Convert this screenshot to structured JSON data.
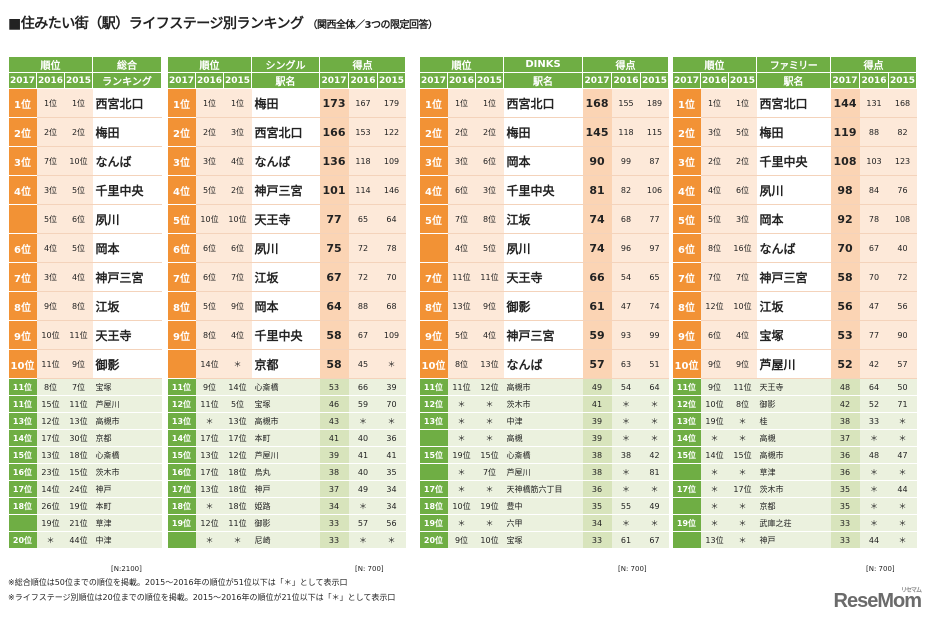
{
  "title": "■住みたい街（駅）ライフステージ別ランキング",
  "subtitle": "（関西全体／3つの限定回答）",
  "tables": [
    {
      "id": "overall",
      "header_group": "順位",
      "header_name_top": "総合",
      "header_name_bottom": "ランキング",
      "years": [
        "2017",
        "2016",
        "2015"
      ],
      "has_points": false,
      "top": [
        {
          "r": "1位",
          "a": "1位",
          "b": "1位",
          "n": "西宮北口"
        },
        {
          "r": "2位",
          "a": "2位",
          "b": "2位",
          "n": "梅田"
        },
        {
          "r": "3位",
          "a": "7位",
          "b": "10位",
          "n": "なんば"
        },
        {
          "r": "4位",
          "a": "3位",
          "b": "5位",
          "n": "千里中央"
        },
        {
          "r": "",
          "a": "5位",
          "b": "6位",
          "n": "夙川"
        },
        {
          "r": "6位",
          "a": "4位",
          "b": "5位",
          "n": "岡本"
        },
        {
          "r": "7位",
          "a": "3位",
          "b": "4位",
          "n": "神戸三宮"
        },
        {
          "r": "8位",
          "a": "9位",
          "b": "8位",
          "n": "江坂"
        },
        {
          "r": "9位",
          "a": "10位",
          "b": "11位",
          "n": "天王寺"
        },
        {
          "r": "10位",
          "a": "11位",
          "b": "9位",
          "n": "御影"
        }
      ],
      "low": [
        {
          "r": "11位",
          "a": "8位",
          "b": "7位",
          "n": "宝塚"
        },
        {
          "r": "11位",
          "a": "15位",
          "b": "11位",
          "n": "芦屋川"
        },
        {
          "r": "13位",
          "a": "12位",
          "b": "13位",
          "n": "高槻市"
        },
        {
          "r": "14位",
          "a": "17位",
          "b": "30位",
          "n": "京都"
        },
        {
          "r": "15位",
          "a": "13位",
          "b": "18位",
          "n": "心斎橋"
        },
        {
          "r": "16位",
          "a": "23位",
          "b": "15位",
          "n": "茨木市"
        },
        {
          "r": "17位",
          "a": "14位",
          "b": "24位",
          "n": "神戸"
        },
        {
          "r": "18位",
          "a": "26位",
          "b": "19位",
          "n": "本町"
        },
        {
          "r": "",
          "a": "19位",
          "b": "21位",
          "n": "草津"
        },
        {
          "r": "20位",
          "a": "＊",
          "b": "44位",
          "n": "中津"
        }
      ],
      "n": "[N:2100]"
    },
    {
      "id": "single",
      "header_group": "順位",
      "header_name_top": "シングル",
      "header_name_bottom": "駅名",
      "header_points": "得点",
      "years": [
        "2017",
        "2016",
        "2015"
      ],
      "has_points": true,
      "top": [
        {
          "r": "1位",
          "a": "1位",
          "b": "1位",
          "n": "梅田",
          "p": "173",
          "q": "167",
          "s": "179"
        },
        {
          "r": "2位",
          "a": "2位",
          "b": "3位",
          "n": "西宮北口",
          "p": "166",
          "q": "153",
          "s": "122"
        },
        {
          "r": "3位",
          "a": "3位",
          "b": "4位",
          "n": "なんば",
          "p": "136",
          "q": "118",
          "s": "109"
        },
        {
          "r": "4位",
          "a": "5位",
          "b": "2位",
          "n": "神戸三宮",
          "p": "101",
          "q": "114",
          "s": "146"
        },
        {
          "r": "5位",
          "a": "10位",
          "b": "10位",
          "n": "天王寺",
          "p": "77",
          "q": "65",
          "s": "64"
        },
        {
          "r": "6位",
          "a": "6位",
          "b": "6位",
          "n": "夙川",
          "p": "75",
          "q": "72",
          "s": "78"
        },
        {
          "r": "7位",
          "a": "6位",
          "b": "7位",
          "n": "江坂",
          "p": "67",
          "q": "72",
          "s": "70"
        },
        {
          "r": "8位",
          "a": "5位",
          "b": "9位",
          "n": "岡本",
          "p": "64",
          "q": "88",
          "s": "68"
        },
        {
          "r": "9位",
          "a": "8位",
          "b": "4位",
          "n": "千里中央",
          "p": "58",
          "q": "67",
          "s": "109"
        },
        {
          "r": "",
          "a": "14位",
          "b": "＊",
          "n": "京都",
          "p": "58",
          "q": "45",
          "s": "＊"
        }
      ],
      "low": [
        {
          "r": "11位",
          "a": "9位",
          "b": "14位",
          "n": "心斎橋",
          "p": "53",
          "q": "66",
          "s": "39"
        },
        {
          "r": "12位",
          "a": "11位",
          "b": "5位",
          "n": "宝塚",
          "p": "46",
          "q": "59",
          "s": "70"
        },
        {
          "r": "13位",
          "a": "＊",
          "b": "13位",
          "n": "高槻市",
          "p": "43",
          "q": "＊",
          "s": "＊"
        },
        {
          "r": "14位",
          "a": "17位",
          "b": "17位",
          "n": "本町",
          "p": "41",
          "q": "40",
          "s": "36"
        },
        {
          "r": "15位",
          "a": "13位",
          "b": "12位",
          "n": "芦屋川",
          "p": "39",
          "q": "41",
          "s": "41"
        },
        {
          "r": "16位",
          "a": "17位",
          "b": "18位",
          "n": "烏丸",
          "p": "38",
          "q": "40",
          "s": "35"
        },
        {
          "r": "17位",
          "a": "13位",
          "b": "18位",
          "n": "神戸",
          "p": "37",
          "q": "49",
          "s": "34"
        },
        {
          "r": "18位",
          "a": "＊",
          "b": "18位",
          "n": "姫路",
          "p": "34",
          "q": "＊",
          "s": "34"
        },
        {
          "r": "19位",
          "a": "12位",
          "b": "11位",
          "n": "御影",
          "p": "33",
          "q": "57",
          "s": "56"
        },
        {
          "r": "",
          "a": "＊",
          "b": "＊",
          "n": "尼崎",
          "p": "33",
          "q": "＊",
          "s": "＊"
        }
      ],
      "n": "[N:  700]"
    },
    {
      "id": "dinks",
      "header_group": "順位",
      "header_name_top": "DINKS",
      "header_name_bottom": "駅名",
      "header_points": "得点",
      "years": [
        "2017",
        "2016",
        "2015"
      ],
      "has_points": true,
      "top": [
        {
          "r": "1位",
          "a": "1位",
          "b": "1位",
          "n": "西宮北口",
          "p": "168",
          "q": "155",
          "s": "189"
        },
        {
          "r": "2位",
          "a": "2位",
          "b": "2位",
          "n": "梅田",
          "p": "145",
          "q": "118",
          "s": "115"
        },
        {
          "r": "3位",
          "a": "3位",
          "b": "6位",
          "n": "岡本",
          "p": "90",
          "q": "99",
          "s": "87"
        },
        {
          "r": "4位",
          "a": "6位",
          "b": "3位",
          "n": "千里中央",
          "p": "81",
          "q": "82",
          "s": "106"
        },
        {
          "r": "5位",
          "a": "7位",
          "b": "8位",
          "n": "江坂",
          "p": "74",
          "q": "68",
          "s": "77"
        },
        {
          "r": "",
          "a": "4位",
          "b": "5位",
          "n": "夙川",
          "p": "74",
          "q": "96",
          "s": "97"
        },
        {
          "r": "7位",
          "a": "11位",
          "b": "11位",
          "n": "天王寺",
          "p": "66",
          "q": "54",
          "s": "65"
        },
        {
          "r": "8位",
          "a": "13位",
          "b": "9位",
          "n": "御影",
          "p": "61",
          "q": "47",
          "s": "74"
        },
        {
          "r": "9位",
          "a": "5位",
          "b": "4位",
          "n": "神戸三宮",
          "p": "59",
          "q": "93",
          "s": "99"
        },
        {
          "r": "10位",
          "a": "8位",
          "b": "13位",
          "n": "なんば",
          "p": "57",
          "q": "63",
          "s": "51"
        }
      ],
      "low": [
        {
          "r": "11位",
          "a": "11位",
          "b": "12位",
          "n": "高槻市",
          "p": "49",
          "q": "54",
          "s": "64"
        },
        {
          "r": "12位",
          "a": "＊",
          "b": "＊",
          "n": "茨木市",
          "p": "41",
          "q": "＊",
          "s": "＊"
        },
        {
          "r": "13位",
          "a": "＊",
          "b": "＊",
          "n": "中津",
          "p": "39",
          "q": "＊",
          "s": "＊"
        },
        {
          "r": "",
          "a": "＊",
          "b": "＊",
          "n": "高槻",
          "p": "39",
          "q": "＊",
          "s": "＊"
        },
        {
          "r": "15位",
          "a": "19位",
          "b": "15位",
          "n": "心斎橋",
          "p": "38",
          "q": "38",
          "s": "42"
        },
        {
          "r": "",
          "a": "＊",
          "b": "7位",
          "n": "芦屋川",
          "p": "38",
          "q": "＊",
          "s": "81"
        },
        {
          "r": "17位",
          "a": "＊",
          "b": "＊",
          "n": "天神橋筋六丁目",
          "p": "36",
          "q": "＊",
          "s": "＊"
        },
        {
          "r": "18位",
          "a": "10位",
          "b": "19位",
          "n": "豊中",
          "p": "35",
          "q": "55",
          "s": "49"
        },
        {
          "r": "19位",
          "a": "＊",
          "b": "＊",
          "n": "六甲",
          "p": "34",
          "q": "＊",
          "s": "＊"
        },
        {
          "r": "20位",
          "a": "9位",
          "b": "10位",
          "n": "宝塚",
          "p": "33",
          "q": "61",
          "s": "67"
        }
      ],
      "n": "[N:  700]"
    },
    {
      "id": "family",
      "header_group": "順位",
      "header_name_top": "ファミリー",
      "header_name_bottom": "駅名",
      "header_points": "得点",
      "years": [
        "2017",
        "2016",
        "2015"
      ],
      "has_points": true,
      "top": [
        {
          "r": "1位",
          "a": "1位",
          "b": "1位",
          "n": "西宮北口",
          "p": "144",
          "q": "131",
          "s": "168"
        },
        {
          "r": "2位",
          "a": "3位",
          "b": "5位",
          "n": "梅田",
          "p": "119",
          "q": "88",
          "s": "82"
        },
        {
          "r": "3位",
          "a": "2位",
          "b": "2位",
          "n": "千里中央",
          "p": "108",
          "q": "103",
          "s": "123"
        },
        {
          "r": "4位",
          "a": "4位",
          "b": "6位",
          "n": "夙川",
          "p": "98",
          "q": "84",
          "s": "76"
        },
        {
          "r": "5位",
          "a": "5位",
          "b": "3位",
          "n": "岡本",
          "p": "92",
          "q": "78",
          "s": "108"
        },
        {
          "r": "6位",
          "a": "8位",
          "b": "16位",
          "n": "なんば",
          "p": "70",
          "q": "67",
          "s": "40"
        },
        {
          "r": "7位",
          "a": "7位",
          "b": "7位",
          "n": "神戸三宮",
          "p": "58",
          "q": "70",
          "s": "72"
        },
        {
          "r": "8位",
          "a": "12位",
          "b": "10位",
          "n": "江坂",
          "p": "56",
          "q": "47",
          "s": "56"
        },
        {
          "r": "9位",
          "a": "6位",
          "b": "4位",
          "n": "宝塚",
          "p": "53",
          "q": "77",
          "s": "90"
        },
        {
          "r": "10位",
          "a": "9位",
          "b": "9位",
          "n": "芦屋川",
          "p": "52",
          "q": "42",
          "s": "57"
        }
      ],
      "low": [
        {
          "r": "11位",
          "a": "9位",
          "b": "11位",
          "n": "天王寺",
          "p": "48",
          "q": "64",
          "s": "50"
        },
        {
          "r": "12位",
          "a": "10位",
          "b": "8位",
          "n": "御影",
          "p": "42",
          "q": "52",
          "s": "71"
        },
        {
          "r": "13位",
          "a": "19位",
          "b": "＊",
          "n": "桂",
          "p": "38",
          "q": "33",
          "s": "＊"
        },
        {
          "r": "14位",
          "a": "＊",
          "b": "＊",
          "n": "高槻",
          "p": "37",
          "q": "＊",
          "s": "＊"
        },
        {
          "r": "15位",
          "a": "14位",
          "b": "15位",
          "n": "高槻市",
          "p": "36",
          "q": "48",
          "s": "47"
        },
        {
          "r": "",
          "a": "＊",
          "b": "＊",
          "n": "草津",
          "p": "36",
          "q": "＊",
          "s": "＊"
        },
        {
          "r": "17位",
          "a": "＊",
          "b": "17位",
          "n": "茨木市",
          "p": "35",
          "q": "＊",
          "s": "44"
        },
        {
          "r": "",
          "a": "＊",
          "b": "＊",
          "n": "京都",
          "p": "35",
          "q": "＊",
          "s": "＊"
        },
        {
          "r": "19位",
          "a": "＊",
          "b": "＊",
          "n": "武庫之荘",
          "p": "33",
          "q": "＊",
          "s": "＊"
        },
        {
          "r": "",
          "a": "13位",
          "b": "＊",
          "n": "神戸",
          "p": "33",
          "q": "44",
          "s": "＊"
        }
      ],
      "n": "[N:  700]"
    }
  ],
  "notes": [
    "※総合順位は50位までの順位を掲載。2015～2016年の順位が51位以下は「＊」として表示口",
    "※ライフステージ別順位は20位までの順位を掲載。2015～2016年の順位が21位以下は「＊」として表示口"
  ],
  "logo": "ReseMom",
  "logo_small": "リセマム"
}
